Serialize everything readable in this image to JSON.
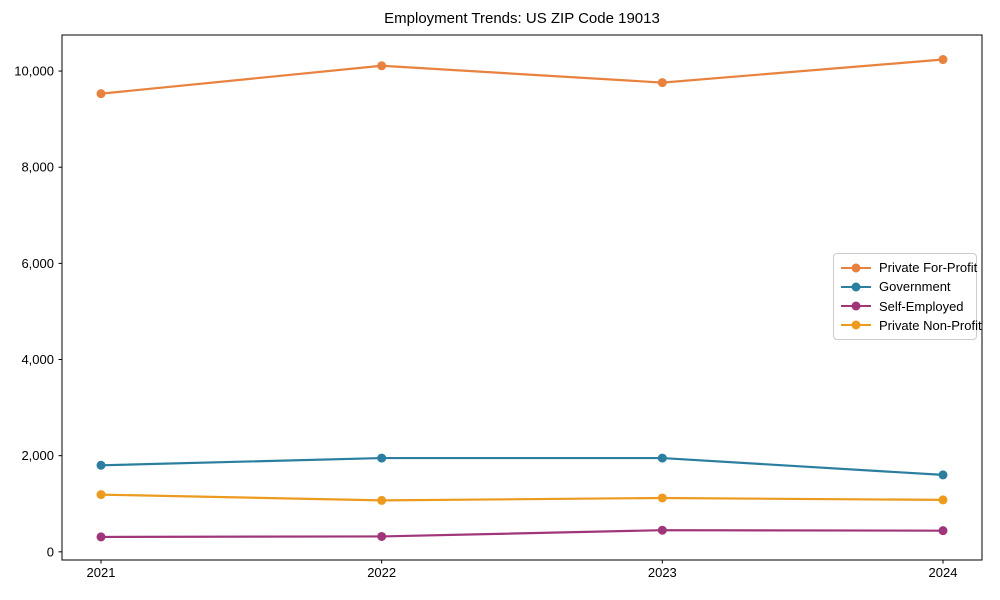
{
  "title": "Employment Trends: US ZIP Code 19013",
  "chart_data": {
    "type": "line",
    "title": "Employment Trends: US ZIP Code 19013",
    "xlabel": "",
    "ylabel": "",
    "categories": [
      "2021",
      "2022",
      "2023",
      "2024"
    ],
    "x": [
      2021,
      2022,
      2023,
      2024
    ],
    "series": [
      {
        "name": "Private For-Profit",
        "color": "#e8823e",
        "values": [
          9530,
          10110,
          9760,
          10240
        ]
      },
      {
        "name": "Government",
        "color": "#2b7e9f",
        "values": [
          1800,
          1950,
          1950,
          1600
        ]
      },
      {
        "name": "Self-Employed",
        "color": "#a0367a",
        "values": [
          310,
          320,
          450,
          440
        ]
      },
      {
        "name": "Private Non-Profit",
        "color": "#ec9b1e",
        "values": [
          1190,
          1070,
          1120,
          1080
        ]
      }
    ],
    "y_ticks": [
      0,
      2000,
      4000,
      6000,
      8000,
      10000
    ],
    "y_tick_labels": [
      "0",
      "2,000",
      "4,000",
      "6,000",
      "8,000",
      "10,000"
    ],
    "ylim": [
      -170,
      10750
    ],
    "grid": false,
    "legend_position": "center right",
    "marker": "circle",
    "axis_color": "#000000"
  }
}
